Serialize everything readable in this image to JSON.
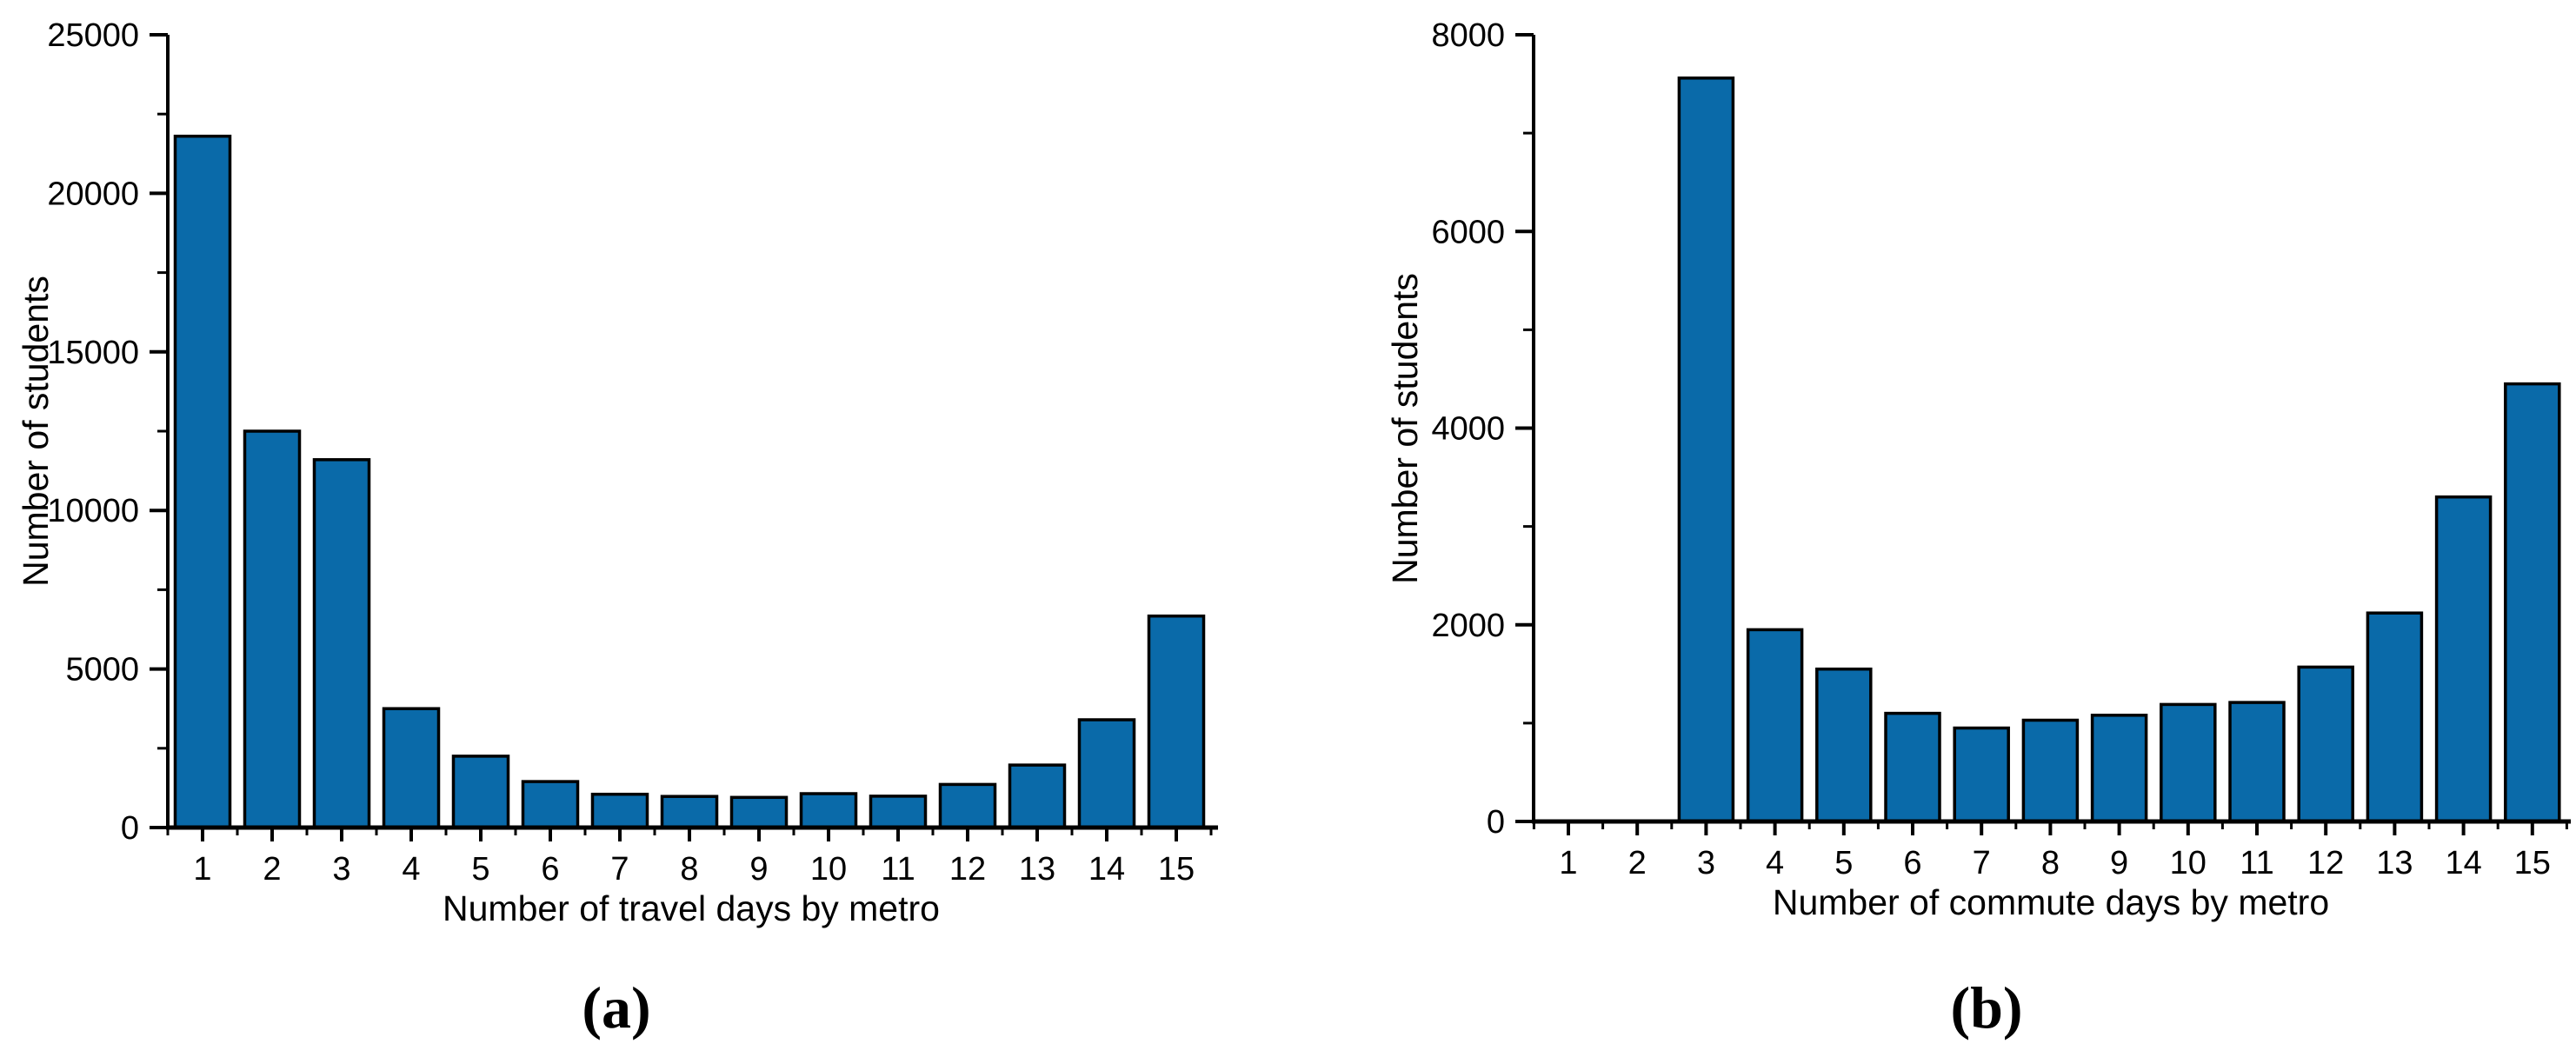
{
  "page": {
    "background": "#ffffff",
    "bar_color": "#0a6aa9",
    "bar_edge_color": "#000000",
    "axis_color": "#000000"
  },
  "captions": {
    "a": "(a)",
    "b": "(b)"
  },
  "chart_data": [
    {
      "type": "bar",
      "panel": "a",
      "title": "",
      "xlabel": "Number of travel days by metro",
      "ylabel": "Number of students",
      "categories": [
        "1",
        "2",
        "3",
        "4",
        "5",
        "6",
        "7",
        "8",
        "9",
        "10",
        "11",
        "12",
        "13",
        "14",
        "15"
      ],
      "values": [
        21800,
        12500,
        11600,
        3750,
        2250,
        1450,
        1050,
        980,
        950,
        1070,
        990,
        1360,
        1970,
        3400,
        6670
      ],
      "ylim": [
        0,
        25000
      ],
      "ytick_interval": 5000,
      "yminor_interval": 2500,
      "ytick_labels": [
        "0",
        "5000",
        "10000",
        "15000",
        "20000",
        "25000"
      ],
      "grid": false,
      "legend": "none",
      "bar_color": "#0a6aa9",
      "bar_edge_color": "#000000"
    },
    {
      "type": "bar",
      "panel": "b",
      "title": "",
      "xlabel": "Number of commute days by metro",
      "ylabel": "Number of students",
      "categories": [
        "1",
        "2",
        "3",
        "4",
        "5",
        "6",
        "7",
        "8",
        "9",
        "10",
        "11",
        "12",
        "13",
        "14",
        "15"
      ],
      "values": [
        0,
        0,
        7560,
        1950,
        1550,
        1100,
        950,
        1030,
        1080,
        1190,
        1210,
        1570,
        2120,
        3300,
        4450
      ],
      "ylim": [
        0,
        8000
      ],
      "ytick_interval": 2000,
      "yminor_interval": 1000,
      "ytick_labels": [
        "0",
        "2000",
        "4000",
        "6000",
        "8000"
      ],
      "grid": false,
      "legend": "none",
      "bar_color": "#0a6aa9",
      "bar_edge_color": "#000000"
    }
  ]
}
